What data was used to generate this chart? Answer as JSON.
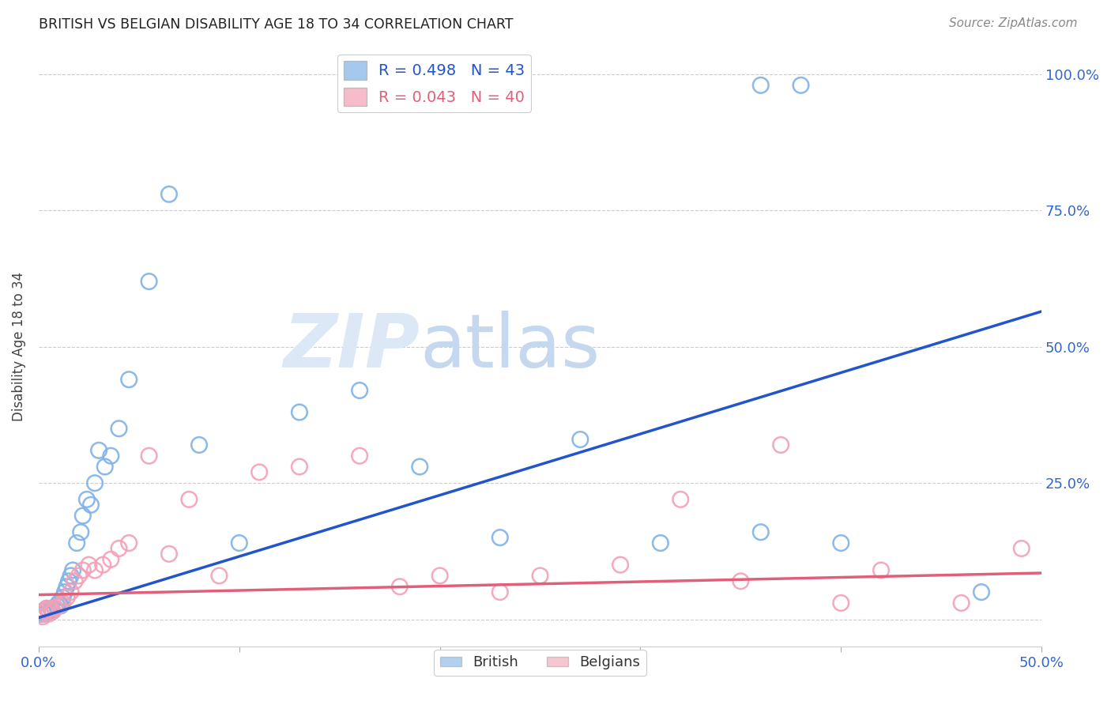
{
  "title": "BRITISH VS BELGIAN DISABILITY AGE 18 TO 34 CORRELATION CHART",
  "source": "Source: ZipAtlas.com",
  "ylabel": "Disability Age 18 to 34",
  "xlim": [
    0.0,
    0.5
  ],
  "ylim": [
    -0.05,
    1.05
  ],
  "british_color": "#7fb3e8",
  "belgian_color": "#f4a0b5",
  "british_line_color": "#2255cc",
  "belgian_line_color": "#e0607a",
  "british_R": 0.498,
  "british_N": 43,
  "belgian_R": 0.043,
  "belgian_N": 40,
  "background_color": "#ffffff",
  "grid_color": "#cccccc",
  "british_x": [
    0.001,
    0.002,
    0.003,
    0.004,
    0.005,
    0.006,
    0.007,
    0.008,
    0.009,
    0.01,
    0.011,
    0.012,
    0.013,
    0.014,
    0.015,
    0.016,
    0.017,
    0.019,
    0.021,
    0.022,
    0.024,
    0.026,
    0.028,
    0.03,
    0.033,
    0.036,
    0.04,
    0.045,
    0.055,
    0.065,
    0.08,
    0.1,
    0.13,
    0.16,
    0.19,
    0.23,
    0.27,
    0.31,
    0.36,
    0.4,
    0.36,
    0.38,
    0.47
  ],
  "british_y": [
    0.01,
    0.015,
    0.01,
    0.02,
    0.015,
    0.02,
    0.015,
    0.02,
    0.025,
    0.03,
    0.025,
    0.04,
    0.05,
    0.06,
    0.07,
    0.08,
    0.09,
    0.14,
    0.16,
    0.19,
    0.22,
    0.21,
    0.25,
    0.31,
    0.28,
    0.3,
    0.35,
    0.44,
    0.62,
    0.78,
    0.32,
    0.14,
    0.38,
    0.42,
    0.28,
    0.15,
    0.33,
    0.14,
    0.16,
    0.14,
    0.98,
    0.98,
    0.05
  ],
  "belgian_x": [
    0.001,
    0.002,
    0.003,
    0.004,
    0.005,
    0.006,
    0.007,
    0.008,
    0.01,
    0.012,
    0.014,
    0.016,
    0.018,
    0.02,
    0.022,
    0.025,
    0.028,
    0.032,
    0.036,
    0.04,
    0.045,
    0.055,
    0.065,
    0.075,
    0.09,
    0.11,
    0.13,
    0.16,
    0.18,
    0.2,
    0.23,
    0.25,
    0.29,
    0.32,
    0.35,
    0.37,
    0.4,
    0.42,
    0.46,
    0.49
  ],
  "belgian_y": [
    0.01,
    0.005,
    0.015,
    0.02,
    0.01,
    0.02,
    0.015,
    0.02,
    0.025,
    0.03,
    0.04,
    0.05,
    0.07,
    0.08,
    0.09,
    0.1,
    0.09,
    0.1,
    0.11,
    0.13,
    0.14,
    0.3,
    0.12,
    0.22,
    0.08,
    0.27,
    0.28,
    0.3,
    0.06,
    0.08,
    0.05,
    0.08,
    0.1,
    0.22,
    0.07,
    0.32,
    0.03,
    0.09,
    0.03,
    0.13
  ],
  "brit_line_x0": 0.0,
  "brit_line_y0": 0.003,
  "brit_line_x1": 0.5,
  "brit_line_y1": 0.565,
  "belg_line_x0": 0.0,
  "belg_line_y0": 0.045,
  "belg_line_x1": 0.5,
  "belg_line_y1": 0.085
}
